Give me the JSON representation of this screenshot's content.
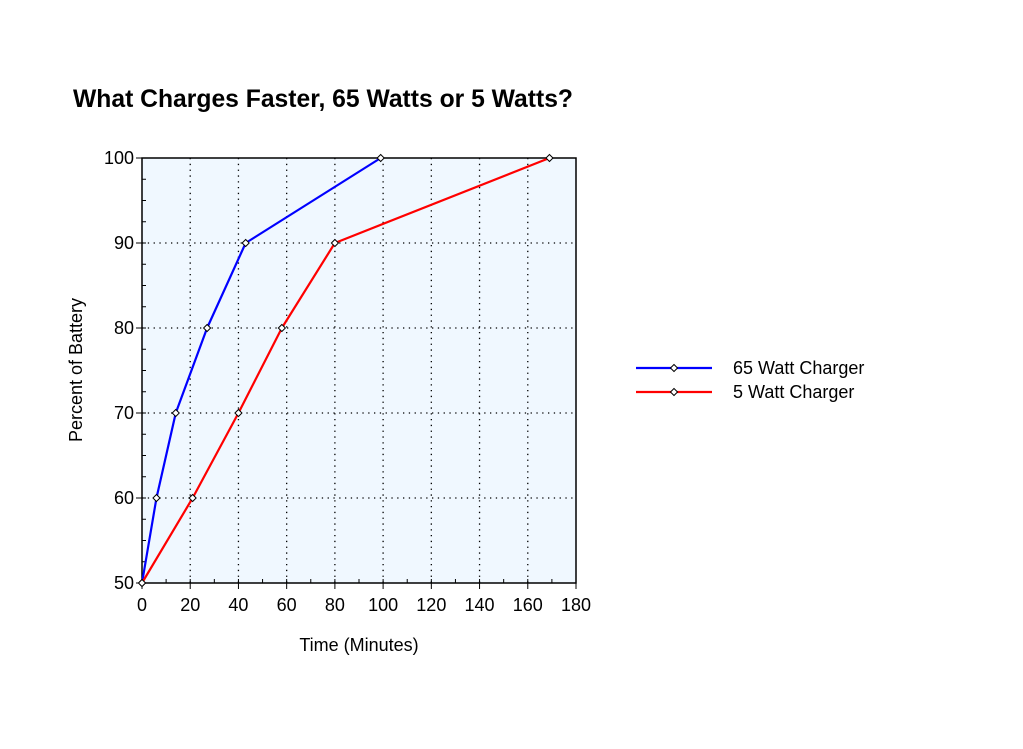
{
  "chart_data": {
    "type": "line",
    "title": "What Charges Faster, 65 Watts or 5 Watts?",
    "xlabel": "Time (Minutes)",
    "ylabel": "Percent of Battery",
    "xlim": [
      0,
      180
    ],
    "ylim": [
      50,
      100
    ],
    "x_ticks": [
      0,
      20,
      40,
      60,
      80,
      100,
      120,
      140,
      160,
      180
    ],
    "y_ticks": [
      50,
      60,
      70,
      80,
      90,
      100
    ],
    "grid": true,
    "legend_position": "right",
    "series": [
      {
        "name": "65 Watt Charger",
        "color": "#0000ff",
        "x": [
          0,
          6,
          14,
          27,
          43,
          99
        ],
        "y": [
          50,
          60,
          70,
          80,
          90,
          100
        ]
      },
      {
        "name": "5 Watt Charger",
        "color": "#ff0000",
        "x": [
          0,
          21,
          40,
          58,
          80,
          169
        ],
        "y": [
          50,
          60,
          70,
          80,
          90,
          100
        ]
      }
    ],
    "plot_background": "#f0f8ff"
  }
}
